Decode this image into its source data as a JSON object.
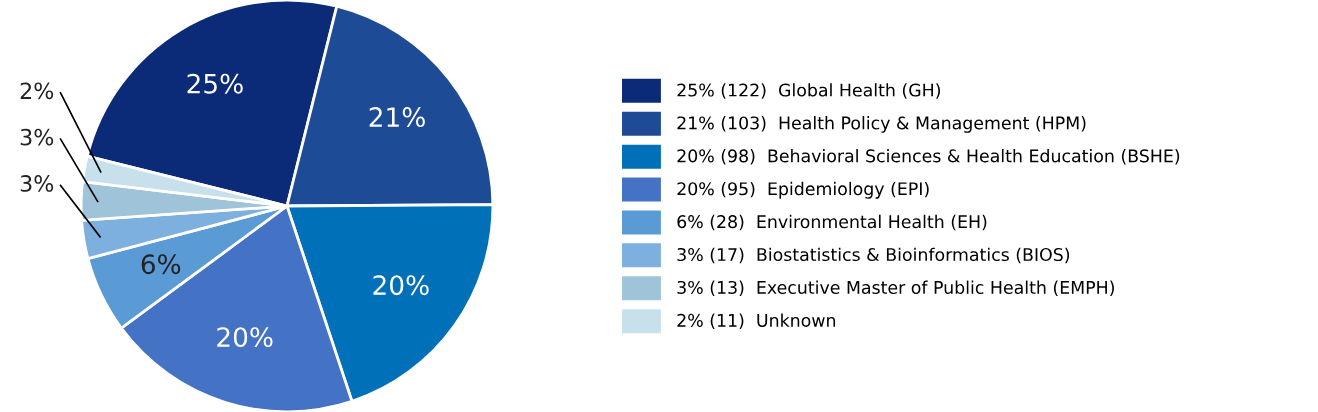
{
  "chart_data": {
    "type": "pie",
    "categories": [
      "25% (122)  Global Health (GH)",
      "21% (103)  Health Policy & Management (HPM)",
      "20% (98)  Behavioral Sciences & Health Education (BSHE)",
      "20% (95)  Epidemiology (EPI)",
      "6% (28)  Environmental Health (EH)",
      "3% (17)  Biostatistics & Bioinformatics (BIOS)",
      "3% (13)  Executive Master of Public Health (EMPH)",
      "2% (11)  Unknown"
    ],
    "values": [
      25,
      21,
      20,
      20,
      6,
      3,
      3,
      2
    ],
    "value_labels": [
      "25%",
      "21%",
      "20%",
      "20%",
      "6%",
      "3%",
      "3%",
      "2%"
    ],
    "colors": [
      "#0b2a78",
      "#1d4b95",
      "#0070b9",
      "#4472c4",
      "#5b9bd5",
      "#7dafdf",
      "#9fc4d9",
      "#c8e0eb"
    ],
    "legend": "right"
  }
}
